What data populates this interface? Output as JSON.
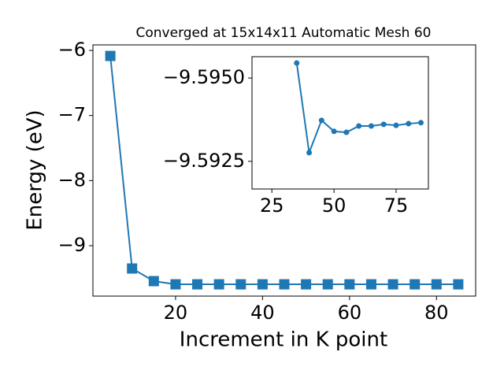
{
  "chart_data": [
    {
      "type": "line",
      "title": "Converged at 15x14x11 Automatic Mesh 60",
      "x_label": "Increment in K point",
      "y_label": "Energy (eV)",
      "x": [
        5,
        10,
        15,
        20,
        25,
        30,
        35,
        40,
        45,
        50,
        55,
        60,
        65,
        70,
        75,
        80,
        85
      ],
      "series": [
        {
          "color": "#1f77b4",
          "marker": "square",
          "values": [
            -6.085,
            -9.35,
            -9.544,
            -9.593,
            -9.593,
            -9.593,
            -9.593,
            -9.593,
            -9.593,
            -9.593,
            -9.593,
            -9.593,
            -9.593,
            -9.593,
            -9.593,
            -9.593,
            -9.593
          ]
        }
      ],
      "xlim": [
        1,
        89
      ],
      "ylim": [
        -9.774,
        -5.915
      ],
      "xticks": [
        20,
        40,
        60,
        80
      ],
      "yticks": [
        {
          "value": -9,
          "label": "−9"
        },
        {
          "value": -8,
          "label": "−8"
        },
        {
          "value": -7,
          "label": "−7"
        },
        {
          "value": -6,
          "label": "−6"
        }
      ]
    },
    {
      "type": "line",
      "x": [
        35,
        40,
        45,
        50,
        55,
        60,
        65,
        70,
        75,
        80,
        85
      ],
      "series": [
        {
          "color": "#1f77b4",
          "marker": "circle",
          "values": [
            -9.59545,
            -9.59276,
            -9.59373,
            -9.5934,
            -9.59337,
            -9.59356,
            -9.59356,
            -9.59361,
            -9.59358,
            -9.59363,
            -9.59366
          ]
        }
      ],
      "xlim": [
        17,
        88
      ],
      "ylim": [
        -9.59167,
        -9.59564
      ],
      "xticks": [
        25,
        50,
        75
      ],
      "yticks": [
        {
          "value": -9.595,
          "label": "−9.5950"
        },
        {
          "value": -9.5925,
          "label": "−9.5925"
        }
      ]
    }
  ]
}
